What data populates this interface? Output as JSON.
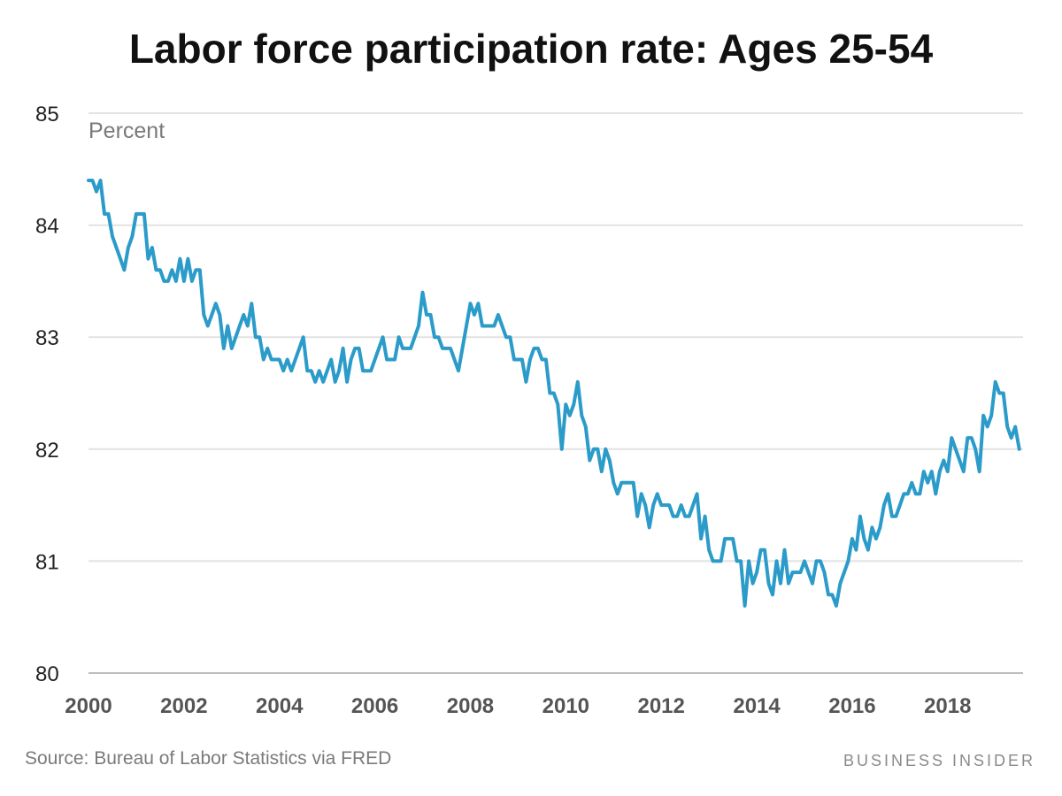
{
  "header": {
    "title": "Labor force participation rate: Ages 25-54"
  },
  "footer": {
    "source": "Source: Bureau of Labor Statistics via FRED",
    "brand": "BUSINESS INSIDER"
  },
  "colors": {
    "line": "#2b9bc9",
    "grid": "#e2e2e2",
    "axis": "#bdbdbd"
  },
  "chart_data": {
    "type": "line",
    "ylabel": "Percent",
    "xlabel": "",
    "ylim": [
      80,
      85
    ],
    "xlim": [
      2000,
      2019.58
    ],
    "y_ticks": [
      "80",
      "81",
      "82",
      "83",
      "84",
      "85"
    ],
    "x_ticks": [
      "2000",
      "2002",
      "2004",
      "2006",
      "2008",
      "2010",
      "2012",
      "2014",
      "2016",
      "2018"
    ],
    "grid": true,
    "series": [
      {
        "x_start": 2000,
        "frequency": "monthly",
        "values": [
          84.4,
          84.4,
          84.3,
          84.4,
          84.1,
          84.1,
          83.9,
          83.8,
          83.7,
          83.6,
          83.8,
          83.9,
          84.1,
          84.1,
          84.1,
          83.7,
          83.8,
          83.6,
          83.6,
          83.5,
          83.5,
          83.6,
          83.5,
          83.7,
          83.5,
          83.7,
          83.5,
          83.6,
          83.6,
          83.2,
          83.1,
          83.2,
          83.3,
          83.2,
          82.9,
          83.1,
          82.9,
          83.0,
          83.1,
          83.2,
          83.1,
          83.3,
          83.0,
          83.0,
          82.8,
          82.9,
          82.8,
          82.8,
          82.8,
          82.7,
          82.8,
          82.7,
          82.8,
          82.9,
          83.0,
          82.7,
          82.7,
          82.6,
          82.7,
          82.6,
          82.7,
          82.8,
          82.6,
          82.7,
          82.9,
          82.6,
          82.8,
          82.9,
          82.9,
          82.7,
          82.7,
          82.7,
          82.8,
          82.9,
          83.0,
          82.8,
          82.8,
          82.8,
          83.0,
          82.9,
          82.9,
          82.9,
          83.0,
          83.1,
          83.4,
          83.2,
          83.2,
          83.0,
          83.0,
          82.9,
          82.9,
          82.9,
          82.8,
          82.7,
          82.9,
          83.1,
          83.3,
          83.2,
          83.3,
          83.1,
          83.1,
          83.1,
          83.1,
          83.2,
          83.1,
          83.0,
          83.0,
          82.8,
          82.8,
          82.8,
          82.6,
          82.8,
          82.9,
          82.9,
          82.8,
          82.8,
          82.5,
          82.5,
          82.4,
          82.0,
          82.4,
          82.3,
          82.4,
          82.6,
          82.3,
          82.2,
          81.9,
          82.0,
          82.0,
          81.8,
          82.0,
          81.9,
          81.7,
          81.6,
          81.7,
          81.7,
          81.7,
          81.7,
          81.4,
          81.6,
          81.5,
          81.3,
          81.5,
          81.6,
          81.5,
          81.5,
          81.5,
          81.4,
          81.4,
          81.5,
          81.4,
          81.4,
          81.5,
          81.6,
          81.2,
          81.4,
          81.1,
          81.0,
          81.0,
          81.0,
          81.2,
          81.2,
          81.2,
          81.0,
          81.0,
          80.6,
          81.0,
          80.8,
          80.9,
          81.1,
          81.1,
          80.8,
          80.7,
          81.0,
          80.8,
          81.1,
          80.8,
          80.9,
          80.9,
          80.9,
          81.0,
          80.9,
          80.8,
          81.0,
          81.0,
          80.9,
          80.7,
          80.7,
          80.6,
          80.8,
          80.9,
          81.0,
          81.2,
          81.1,
          81.4,
          81.2,
          81.1,
          81.3,
          81.2,
          81.3,
          81.5,
          81.6,
          81.4,
          81.4,
          81.5,
          81.6,
          81.6,
          81.7,
          81.6,
          81.6,
          81.8,
          81.7,
          81.8,
          81.6,
          81.8,
          81.9,
          81.8,
          82.1,
          82.0,
          81.9,
          81.8,
          82.1,
          82.1,
          82.0,
          81.8,
          82.3,
          82.2,
          82.3,
          82.6,
          82.5,
          82.5,
          82.2,
          82.1,
          82.2,
          82.0
        ]
      }
    ]
  }
}
